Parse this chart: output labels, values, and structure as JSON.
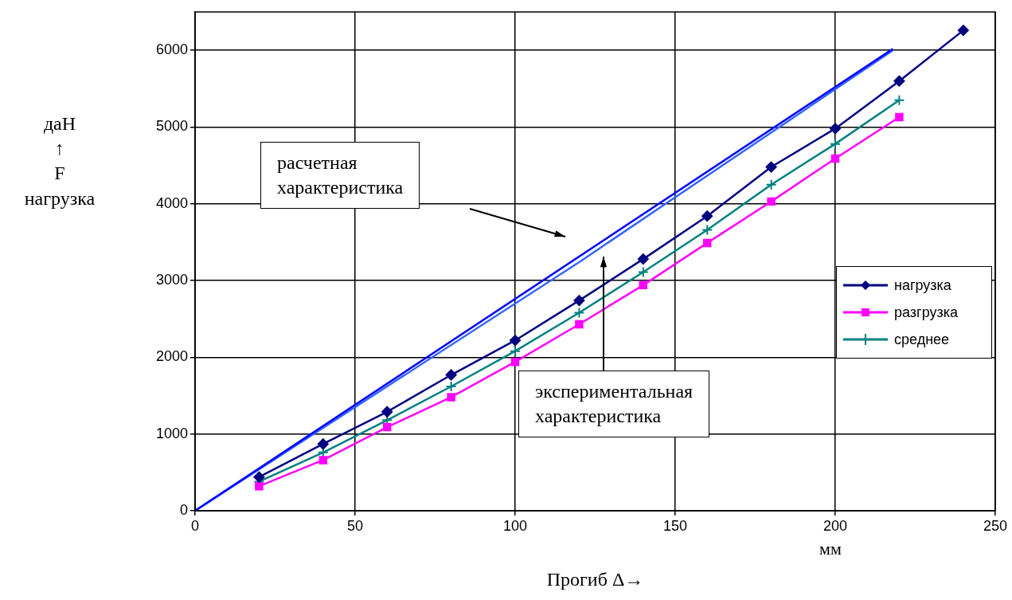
{
  "chart_data": {
    "type": "line",
    "xlabel": "Прогиб Δ→",
    "ylabel": "даН\n↑\nF\nнагрузка",
    "xlim": [
      0,
      250
    ],
    "xticks": [
      0,
      50,
      100,
      150,
      200,
      250
    ],
    "ylim": [
      0,
      6500
    ],
    "yticks": [
      0,
      1000,
      2000,
      3000,
      4000,
      5000,
      6000
    ],
    "grid": true,
    "legend": "right",
    "line_style": "solid",
    "series": [
      {
        "name": "нагрузка",
        "color": "#000080",
        "marker": "diamond",
        "x": [
          20,
          40,
          60,
          80,
          100,
          120,
          140,
          160,
          180,
          200,
          220,
          240
        ],
        "values": [
          440,
          870,
          1290,
          1770,
          2220,
          2740,
          3280,
          3840,
          4480,
          4980,
          5600,
          6260
        ]
      },
      {
        "name": "разгрузка",
        "color": "#ff00ff",
        "marker": "square",
        "x": [
          20,
          40,
          60,
          80,
          100,
          120,
          140,
          160,
          180,
          200,
          220
        ],
        "values": [
          320,
          660,
          1090,
          1480,
          1940,
          2430,
          2940,
          3490,
          4030,
          4590,
          5130
        ]
      },
      {
        "name": "среднее",
        "color": "#008080",
        "marker": "cross",
        "x": [
          20,
          40,
          60,
          80,
          100,
          120,
          140,
          160,
          180,
          200,
          220
        ],
        "values": [
          380,
          760,
          1180,
          1620,
          2080,
          2580,
          3110,
          3660,
          4250,
          4780,
          5350
        ]
      },
      {
        "color": "#0000ff",
        "marker": "none",
        "x": [
          0,
          218
        ],
        "values": [
          0,
          6020
        ]
      },
      {
        "color": "#3366ff",
        "marker": "none",
        "x": [
          0,
          120,
          218
        ],
        "values": [
          0,
          3240,
          6000
        ]
      }
    ],
    "annotations": [
      "расчетная\nхарактеристика",
      "экспериментальная\nхарактеристика",
      "мм"
    ]
  }
}
